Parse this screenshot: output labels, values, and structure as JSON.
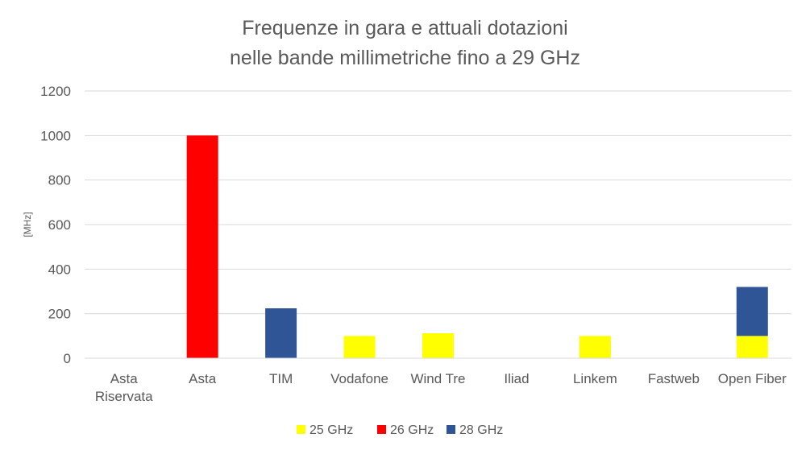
{
  "chart_data": {
    "type": "bar",
    "stacked": true,
    "title_lines": [
      "Frequenze  in gara e attuali dotazioni",
      "nelle bande millimetriche fino a 29 GHz"
    ],
    "xlabel": "",
    "ylabel": "[MHz]",
    "ylim": [
      0,
      1200
    ],
    "yticks": [
      0,
      200,
      400,
      600,
      800,
      1000,
      1200
    ],
    "grid": true,
    "legend_position": "bottom",
    "categories": [
      [
        "Asta",
        "Riservata"
      ],
      [
        "Asta"
      ],
      [
        "TIM"
      ],
      [
        "Vodafone"
      ],
      [
        "Wind Tre"
      ],
      [
        "Iliad"
      ],
      [
        "Linkem"
      ],
      [
        "Fastweb"
      ],
      [
        "Open Fiber"
      ]
    ],
    "series": [
      {
        "name": "25 GHz",
        "color": "#FFFF00",
        "values": [
          0,
          0,
          0,
          100,
          112,
          0,
          100,
          0,
          100
        ]
      },
      {
        "name": "26 GHz",
        "color": "#FF0000",
        "values": [
          0,
          1000,
          0,
          0,
          0,
          0,
          0,
          0,
          0
        ]
      },
      {
        "name": "28 GHz",
        "color": "#2F5597",
        "values": [
          0,
          0,
          224,
          0,
          0,
          0,
          0,
          0,
          220
        ]
      }
    ]
  }
}
